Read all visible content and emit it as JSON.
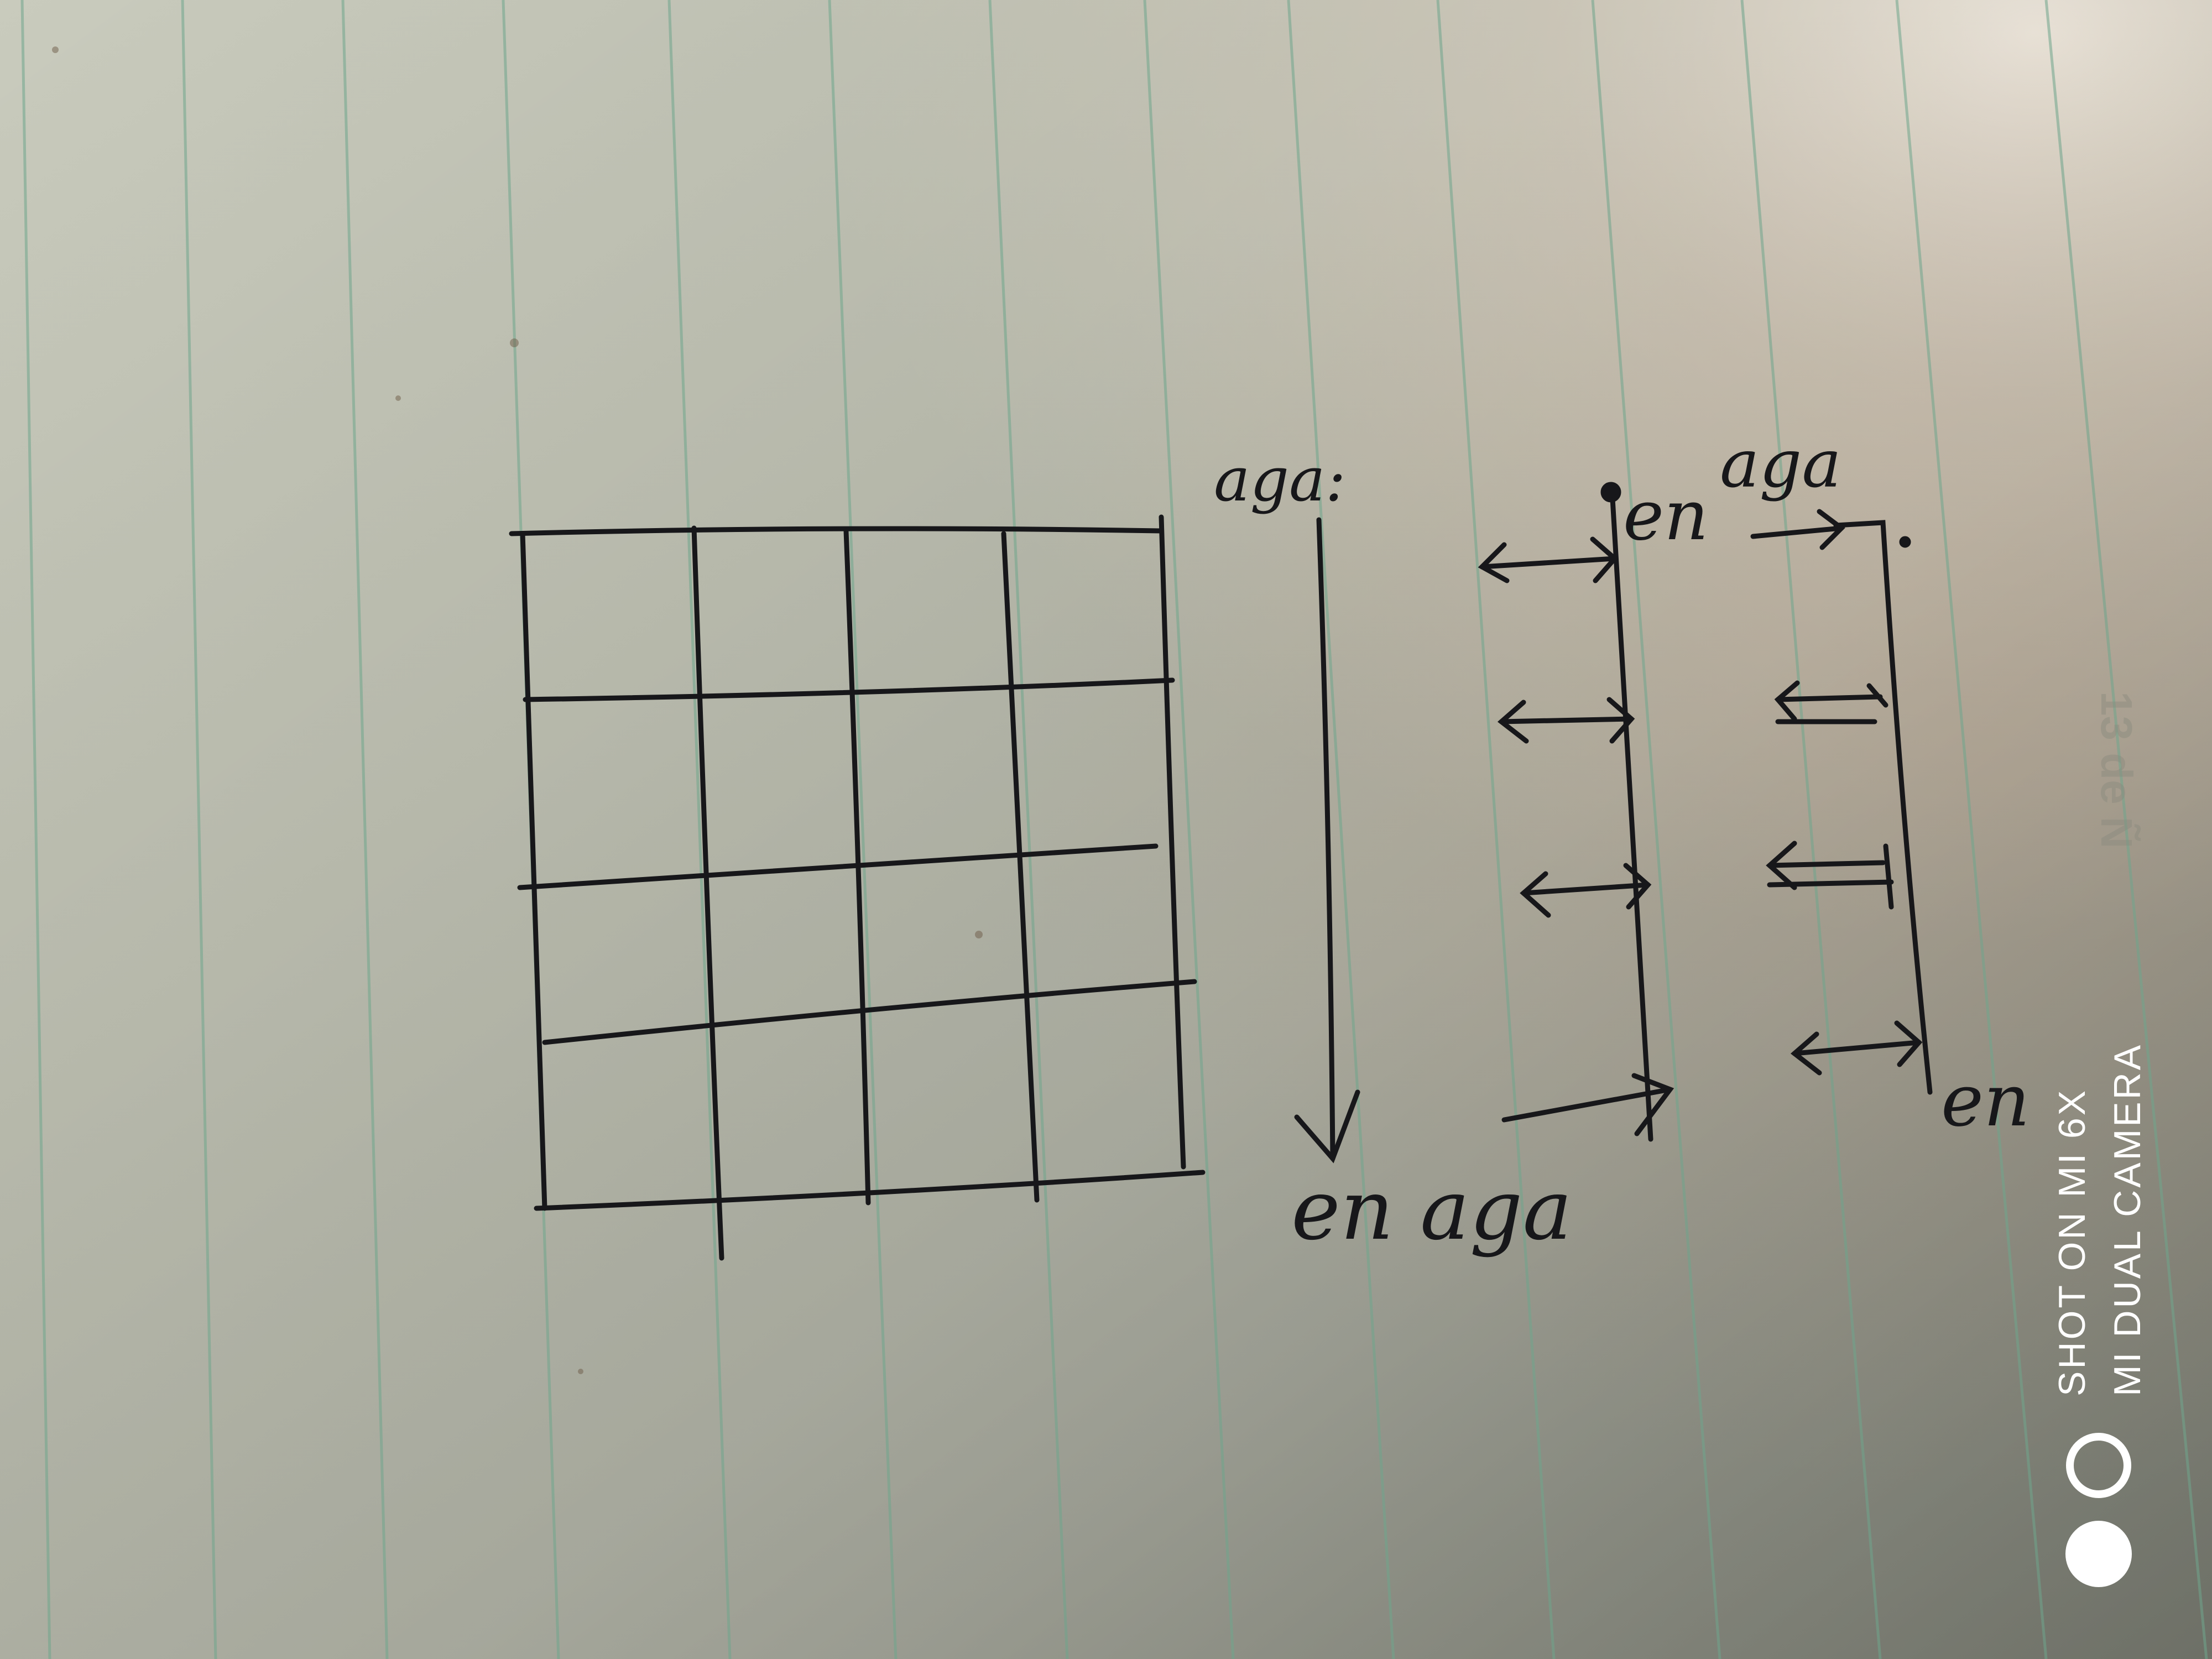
{
  "photo": {
    "subject": "hand-drawn sketch on lined notebook paper",
    "colors": {
      "paper_light": "#d8d7cb",
      "paper_dark": "#8e9184",
      "ruled_line": "#6fa58c",
      "ink": "#17171a",
      "watermark": "#ffffff"
    }
  },
  "labels": {
    "column_start": "aga:",
    "column_end": "en aga",
    "middle_top": "en",
    "right_top": "aga",
    "right_bottom": "en"
  },
  "grid": {
    "rows": 4,
    "columns": 4
  },
  "watermark": {
    "line1": "SHOT ON MI 6X",
    "line2": "MI DUAL CAMERA",
    "icon": "dual-camera-circles-icon"
  },
  "margin_mark": "13 de Ñ"
}
